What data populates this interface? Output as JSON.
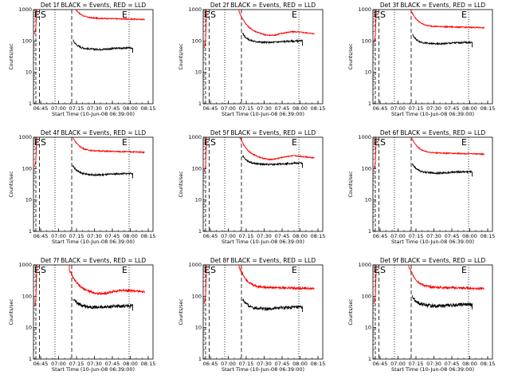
{
  "chart_data": {
    "type": "line",
    "layout": "3x3 grid",
    "shared": {
      "xlabel": "Start Time (10-Jun-08 06:39:00)",
      "ylabel": "Counts/sec",
      "x_tick_labels": [
        "06:45",
        "07:00",
        "07:15",
        "07:30",
        "07:45",
        "08:00",
        "08:15"
      ],
      "y_tick_labels": [
        "1",
        "10",
        "100",
        "1000"
      ],
      "yscale": "log",
      "ylim": [
        1,
        1000
      ],
      "xlim": [
        "06:39",
        "08:19"
      ],
      "markers": {
        "eclipse_start": "E",
        "saa": "S",
        "eclipse_end": "E"
      },
      "series_colors": {
        "events": "#000000",
        "lld": "#ff0000"
      },
      "legend_text": "BLACK = Events, RED = LLD"
    },
    "panels": [
      {
        "title": "Det 1f BLACK = Events, RED = LLD",
        "lld_level": 550,
        "events_level": 60,
        "lld_shape": "flat",
        "noise": 0.04
      },
      {
        "title": "Det 2f BLACK = Events, RED = LLD",
        "lld_level": 200,
        "events_level": 100,
        "lld_shape": "dip",
        "noise": 0.04
      },
      {
        "title": "Det 3f BLACK = Events, RED = LLD",
        "lld_level": 300,
        "events_level": 90,
        "lld_shape": "flat",
        "noise": 0.04
      },
      {
        "title": "Det 4f BLACK = Events, RED = LLD",
        "lld_level": 380,
        "events_level": 70,
        "lld_shape": "flat",
        "noise": 0.04
      },
      {
        "title": "Det 5f BLACK = Events, RED = LLD",
        "lld_level": 260,
        "events_level": 150,
        "lld_shape": "dip",
        "noise": 0.04
      },
      {
        "title": "Det 6f BLACK = Events, RED = LLD",
        "lld_level": 330,
        "events_level": 80,
        "lld_shape": "flat",
        "noise": 0.04
      },
      {
        "title": "Det 7f BLACK = Events, RED = LLD",
        "lld_level": 160,
        "events_level": 50,
        "lld_shape": "dip",
        "noise": 0.08
      },
      {
        "title": "Det 8f BLACK = Events, RED = LLD",
        "lld_level": 200,
        "events_level": 45,
        "lld_shape": "flat",
        "noise": 0.08
      },
      {
        "title": "Det 9f BLACK = Events, RED = LLD",
        "lld_level": 200,
        "events_level": 55,
        "lld_shape": "flat",
        "noise": 0.08
      }
    ]
  }
}
